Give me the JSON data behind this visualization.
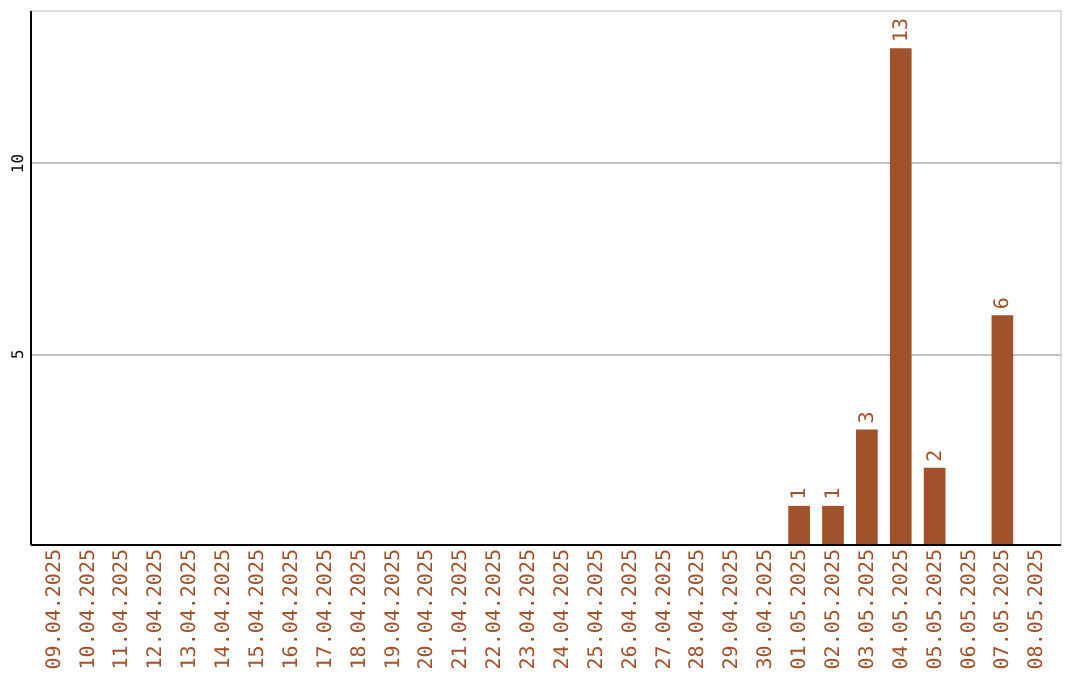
{
  "chart_data": {
    "type": "bar",
    "categories": [
      "09.04.2025",
      "10.04.2025",
      "11.04.2025",
      "12.04.2025",
      "13.04.2025",
      "14.04.2025",
      "15.04.2025",
      "16.04.2025",
      "17.04.2025",
      "18.04.2025",
      "19.04.2025",
      "20.04.2025",
      "21.04.2025",
      "22.04.2025",
      "23.04.2025",
      "24.04.2025",
      "25.04.2025",
      "26.04.2025",
      "27.04.2025",
      "28.04.2025",
      "29.04.2025",
      "30.04.2025",
      "01.05.2025",
      "02.05.2025",
      "03.05.2025",
      "04.05.2025",
      "05.05.2025",
      "06.05.2025",
      "07.05.2025",
      "08.05.2025"
    ],
    "values": [
      0,
      0,
      0,
      0,
      0,
      0,
      0,
      0,
      0,
      0,
      0,
      0,
      0,
      0,
      0,
      0,
      0,
      0,
      0,
      0,
      0,
      0,
      1,
      1,
      3,
      13,
      2,
      0,
      6,
      0
    ],
    "value_labels": [
      null,
      null,
      null,
      null,
      null,
      null,
      null,
      null,
      null,
      null,
      null,
      null,
      null,
      null,
      null,
      null,
      null,
      null,
      null,
      null,
      null,
      null,
      "1",
      "1",
      "3",
      "13",
      "2",
      null,
      "6",
      null
    ],
    "color": "#a0522d",
    "ylim": [
      0,
      14
    ],
    "yticks": [
      5,
      10
    ],
    "grid": "y"
  }
}
